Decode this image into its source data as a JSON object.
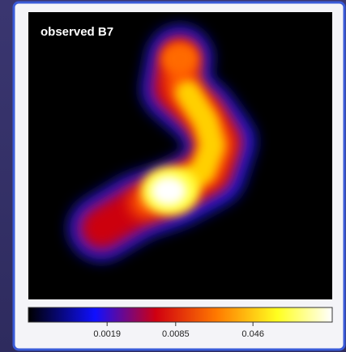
{
  "chart_data": {
    "type": "image",
    "title": "observed B7",
    "colorbar": {
      "scale": "log",
      "clim": [
        0.00034,
        0.26
      ],
      "ticks": [
        0.0019,
        0.0085,
        0.046
      ]
    }
  }
}
